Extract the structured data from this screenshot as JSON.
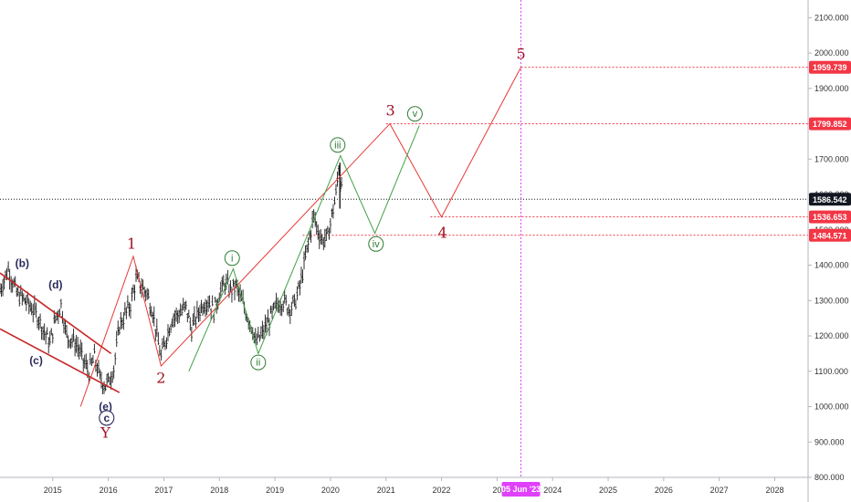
{
  "chart_data": {
    "type": "line",
    "title": "",
    "xlabel": "",
    "ylabel": "",
    "x_ticks": [
      "2015",
      "2016",
      "2017",
      "2018",
      "2019",
      "2020",
      "2021",
      "2022",
      "20",
      "2024",
      "2025",
      "2026",
      "2027",
      "2028"
    ],
    "y_ticks": [
      "800.000",
      "900.000",
      "1000.000",
      "1100.000",
      "1200.000",
      "1300.000",
      "1400.000",
      "1500.000",
      "1600.000",
      "1700.000",
      "1800.000",
      "1900.000",
      "2000.000",
      "2100.000"
    ],
    "ylim": [
      800,
      2150
    ],
    "xlim": [
      2014.05,
      2028.6
    ],
    "y_scale": "linear",
    "grid": false,
    "date_marker": {
      "label": "05 Jun '23",
      "x": 2023.43,
      "color": "#e040fb"
    },
    "price_levels": [
      {
        "value": 1959.739,
        "label": "1959.739",
        "color": "#f23645",
        "x_start": 2023.43
      },
      {
        "value": 1799.852,
        "label": "1799.852",
        "color": "#f23645",
        "x_start": 2021.0
      },
      {
        "value": 1586.542,
        "label": "1586.542",
        "color": "#131722",
        "x_start": 2014.05
      },
      {
        "value": 1536.653,
        "label": "1536.653",
        "color": "#f23645",
        "x_start": 2021.8
      },
      {
        "value": 1484.571,
        "label": "1484.571",
        "color": "#f23645",
        "x_start": 2019.5
      }
    ],
    "price_series": [
      {
        "x": 2014.05,
        "y": 1330
      },
      {
        "x": 2014.2,
        "y": 1390
      },
      {
        "x": 2014.35,
        "y": 1320
      },
      {
        "x": 2014.5,
        "y": 1300
      },
      {
        "x": 2014.62,
        "y": 1280
      },
      {
        "x": 2014.75,
        "y": 1250
      },
      {
        "x": 2014.85,
        "y": 1210
      },
      {
        "x": 2014.95,
        "y": 1180
      },
      {
        "x": 2015.05,
        "y": 1250
      },
      {
        "x": 2015.15,
        "y": 1290
      },
      {
        "x": 2015.25,
        "y": 1200
      },
      {
        "x": 2015.35,
        "y": 1190
      },
      {
        "x": 2015.45,
        "y": 1170
      },
      {
        "x": 2015.55,
        "y": 1130
      },
      {
        "x": 2015.65,
        "y": 1100
      },
      {
        "x": 2015.75,
        "y": 1140
      },
      {
        "x": 2015.85,
        "y": 1080
      },
      {
        "x": 2015.95,
        "y": 1060
      },
      {
        "x": 2016.0,
        "y": 1070
      },
      {
        "x": 2016.1,
        "y": 1110
      },
      {
        "x": 2016.2,
        "y": 1230
      },
      {
        "x": 2016.3,
        "y": 1260
      },
      {
        "x": 2016.4,
        "y": 1290
      },
      {
        "x": 2016.5,
        "y": 1360
      },
      {
        "x": 2016.6,
        "y": 1340
      },
      {
        "x": 2016.7,
        "y": 1320
      },
      {
        "x": 2016.8,
        "y": 1270
      },
      {
        "x": 2016.9,
        "y": 1180
      },
      {
        "x": 2016.95,
        "y": 1140
      },
      {
        "x": 2017.05,
        "y": 1200
      },
      {
        "x": 2017.15,
        "y": 1250
      },
      {
        "x": 2017.25,
        "y": 1260
      },
      {
        "x": 2017.4,
        "y": 1280
      },
      {
        "x": 2017.5,
        "y": 1220
      },
      {
        "x": 2017.6,
        "y": 1260
      },
      {
        "x": 2017.7,
        "y": 1290
      },
      {
        "x": 2017.8,
        "y": 1300
      },
      {
        "x": 2017.9,
        "y": 1270
      },
      {
        "x": 2018.0,
        "y": 1320
      },
      {
        "x": 2018.1,
        "y": 1350
      },
      {
        "x": 2018.2,
        "y": 1330
      },
      {
        "x": 2018.3,
        "y": 1340
      },
      {
        "x": 2018.4,
        "y": 1300
      },
      {
        "x": 2018.5,
        "y": 1260
      },
      {
        "x": 2018.6,
        "y": 1220
      },
      {
        "x": 2018.65,
        "y": 1180
      },
      {
        "x": 2018.75,
        "y": 1200
      },
      {
        "x": 2018.85,
        "y": 1230
      },
      {
        "x": 2018.95,
        "y": 1260
      },
      {
        "x": 2019.05,
        "y": 1290
      },
      {
        "x": 2019.15,
        "y": 1300
      },
      {
        "x": 2019.25,
        "y": 1280
      },
      {
        "x": 2019.35,
        "y": 1290
      },
      {
        "x": 2019.45,
        "y": 1340
      },
      {
        "x": 2019.55,
        "y": 1420
      },
      {
        "x": 2019.65,
        "y": 1500
      },
      {
        "x": 2019.7,
        "y": 1540
      },
      {
        "x": 2019.75,
        "y": 1510
      },
      {
        "x": 2019.85,
        "y": 1470
      },
      {
        "x": 2019.95,
        "y": 1480
      },
      {
        "x": 2020.05,
        "y": 1560
      },
      {
        "x": 2020.1,
        "y": 1600
      },
      {
        "x": 2020.15,
        "y": 1680
      },
      {
        "x": 2020.18,
        "y": 1640
      },
      {
        "x": 2020.22,
        "y": 1586.542
      }
    ],
    "lines": [
      {
        "name": "",
        "color": "#e53935",
        "width": 1,
        "points": [
          [
            2015.5,
            1000
          ],
          [
            2016.45,
            1425
          ],
          [
            2016.95,
            1115
          ],
          [
            2021.07,
            1800
          ],
          [
            2022.0,
            1536
          ],
          [
            2023.43,
            1960
          ]
        ]
      },
      {
        "name": "",
        "color": "#43a047",
        "width": 1,
        "points": [
          [
            2017.45,
            1100
          ],
          [
            2018.25,
            1390
          ],
          [
            2018.7,
            1150
          ],
          [
            2020.18,
            1710
          ],
          [
            2020.8,
            1490
          ],
          [
            2021.6,
            1795
          ]
        ]
      },
      {
        "name": "",
        "color": "#c62828",
        "width": 1.6,
        "points": [
          [
            2014.05,
            1378
          ],
          [
            2016.05,
            1150
          ]
        ]
      },
      {
        "name": "",
        "color": "#c62828",
        "width": 1.6,
        "points": [
          [
            2014.05,
            1220
          ],
          [
            2016.2,
            1040
          ]
        ]
      }
    ],
    "wave_labels": [
      {
        "text": "(b)",
        "x": 2014.45,
        "y": 1405,
        "style": "navy"
      },
      {
        "text": "(d)",
        "x": 2015.05,
        "y": 1345,
        "style": "navy"
      },
      {
        "text": "(c)",
        "x": 2014.7,
        "y": 1130,
        "style": "navy"
      },
      {
        "text": "(e)",
        "x": 2015.95,
        "y": 1000,
        "style": "navy"
      },
      {
        "text": "c",
        "x": 2015.97,
        "y": 968,
        "style": "navy-circle"
      },
      {
        "text": "Y",
        "x": 2015.95,
        "y": 925,
        "style": "red"
      },
      {
        "text": "1",
        "x": 2016.42,
        "y": 1460,
        "style": "red"
      },
      {
        "text": "2",
        "x": 2016.95,
        "y": 1080,
        "style": "red"
      },
      {
        "text": "3",
        "x": 2021.08,
        "y": 1837,
        "style": "red"
      },
      {
        "text": "4",
        "x": 2022.02,
        "y": 1490,
        "style": "red"
      },
      {
        "text": "5",
        "x": 2023.43,
        "y": 1996,
        "style": "red"
      },
      {
        "text": "i",
        "x": 2018.23,
        "y": 1420,
        "style": "green-circle"
      },
      {
        "text": "ii",
        "x": 2018.7,
        "y": 1125,
        "style": "green-circle"
      },
      {
        "text": "iii",
        "x": 2020.13,
        "y": 1740,
        "style": "green-circle"
      },
      {
        "text": "iv",
        "x": 2020.82,
        "y": 1460,
        "style": "green-circle"
      },
      {
        "text": "v",
        "x": 2021.52,
        "y": 1828,
        "style": "green-circle"
      }
    ]
  }
}
